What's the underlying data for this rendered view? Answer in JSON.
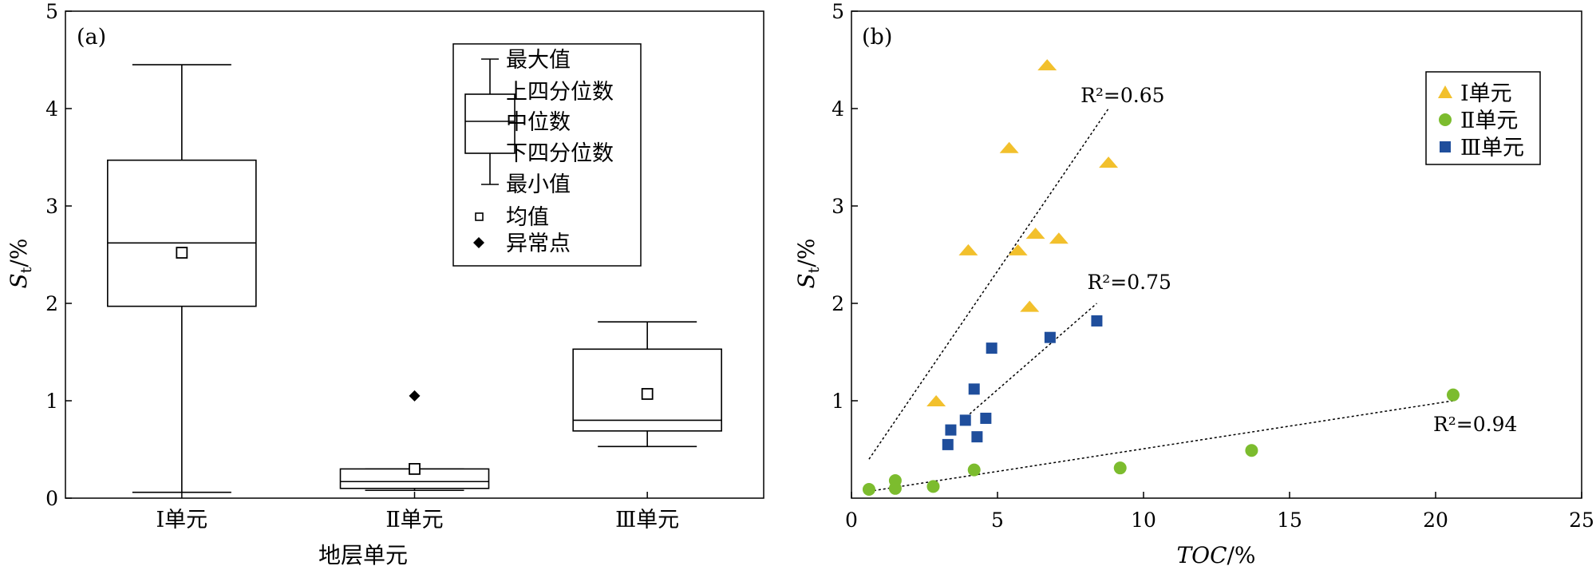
{
  "panels": {
    "a": {
      "label": "(a)",
      "xlabel": "地层单元",
      "ylabel_symbol": "S",
      "ylabel_sub": "t",
      "ylabel_unit": "/%",
      "legend": {
        "max": "最大值",
        "upper_quartile": "上四分位数",
        "median": "中位数",
        "lower_quartile": "下四分位数",
        "min": "最小值",
        "mean": "均值",
        "outlier": "异常点"
      }
    },
    "b": {
      "label": "(b)",
      "xlabel_symbol": "TOC",
      "xlabel_unit": "/%",
      "ylabel_symbol": "S",
      "ylabel_sub": "t",
      "ylabel_unit": "/%"
    }
  },
  "colors": {
    "unit_1": "#f2c02c",
    "unit_2": "#7cbc2e",
    "unit_3": "#1f4e9c",
    "frame": "#000000"
  },
  "chart_data": [
    {
      "type": "box",
      "categories": [
        "Ⅰ单元",
        "Ⅱ单元",
        "Ⅲ单元"
      ],
      "ylim": [
        0,
        5
      ],
      "yticks": [
        0,
        1,
        2,
        3,
        4,
        5
      ],
      "grid": false,
      "legend_position": "top-right",
      "boxes": [
        {
          "category": "Ⅰ单元",
          "min": 0.06,
          "q1": 1.97,
          "median": 2.62,
          "q3": 3.47,
          "max": 4.45,
          "mean": 2.52,
          "outliers": []
        },
        {
          "category": "Ⅱ单元",
          "min": 0.08,
          "q1": 0.1,
          "median": 0.17,
          "q3": 0.3,
          "max": 0.3,
          "mean": 0.3,
          "outliers": [
            1.05
          ]
        },
        {
          "category": "Ⅲ单元",
          "min": 0.53,
          "q1": 0.69,
          "median": 0.8,
          "q3": 1.53,
          "max": 1.81,
          "mean": 1.07,
          "outliers": []
        }
      ]
    },
    {
      "type": "scatter",
      "xlim": [
        0,
        25
      ],
      "ylim": [
        0,
        5
      ],
      "xticks": [
        0,
        5,
        10,
        15,
        20,
        25
      ],
      "yticks": [
        1,
        2,
        3,
        4,
        5
      ],
      "grid": false,
      "legend_position": "top-right",
      "series": [
        {
          "name": "Ⅰ单元",
          "marker": "triangle",
          "color": "#f2c02c",
          "points": [
            [
              2.9,
              1.0
            ],
            [
              4.0,
              2.55
            ],
            [
              5.4,
              3.6
            ],
            [
              5.7,
              2.55
            ],
            [
              6.1,
              1.97
            ],
            [
              6.3,
              2.72
            ],
            [
              6.7,
              4.45
            ],
            [
              7.1,
              2.67
            ],
            [
              8.8,
              3.45
            ]
          ],
          "fit": {
            "x": [
              0.6,
              8.8
            ],
            "y": [
              0.4,
              4.0
            ],
            "r2_label": "R²=0.65"
          }
        },
        {
          "name": "Ⅱ单元",
          "marker": "circle",
          "color": "#7cbc2e",
          "points": [
            [
              0.6,
              0.09
            ],
            [
              1.5,
              0.1
            ],
            [
              1.5,
              0.18
            ],
            [
              2.8,
              0.12
            ],
            [
              4.2,
              0.29
            ],
            [
              9.2,
              0.31
            ],
            [
              13.7,
              0.49
            ],
            [
              20.6,
              1.06
            ]
          ],
          "fit": {
            "x": [
              0.6,
              20.6
            ],
            "y": [
              0.07,
              1.0
            ],
            "r2_label": "R²=0.94"
          }
        },
        {
          "name": "Ⅲ单元",
          "marker": "square",
          "color": "#1f4e9c",
          "points": [
            [
              3.3,
              0.55
            ],
            [
              3.4,
              0.7
            ],
            [
              3.9,
              0.8
            ],
            [
              4.2,
              1.12
            ],
            [
              4.3,
              0.63
            ],
            [
              4.6,
              0.82
            ],
            [
              4.8,
              1.54
            ],
            [
              6.8,
              1.65
            ],
            [
              8.4,
              1.82
            ]
          ],
          "fit": {
            "x": [
              3.8,
              8.4
            ],
            "y": [
              0.8,
              2.0
            ],
            "r2_label": "R²=0.75"
          }
        }
      ]
    }
  ]
}
